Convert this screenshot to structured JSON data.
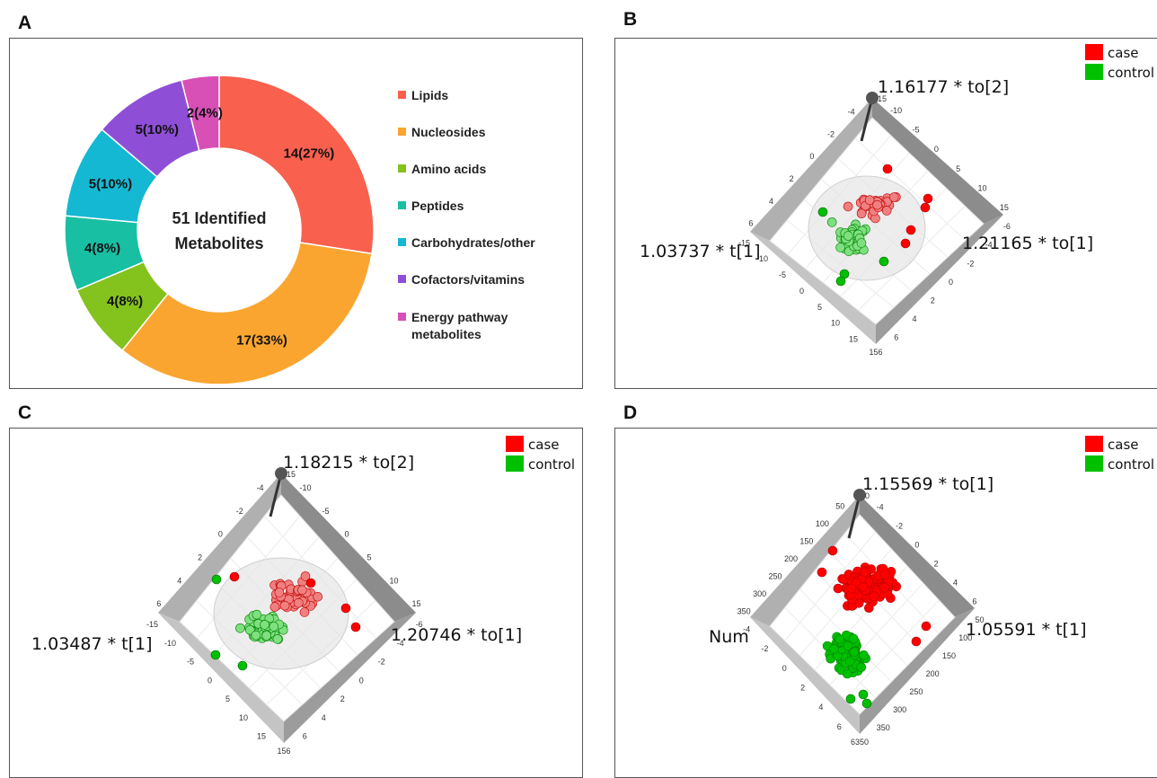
{
  "panels": {
    "a": {
      "letter": "A"
    },
    "b": {
      "letter": "B"
    },
    "c": {
      "letter": "C"
    },
    "d": {
      "letter": "D"
    }
  },
  "colors": {
    "case": "#ff0000",
    "control": "#00c000",
    "case_soft": "#f08080",
    "control_soft": "#7fe07f",
    "frame": "#9a9a9a"
  },
  "chart_data": [
    {
      "type": "pie",
      "panel": "A",
      "center_label": [
        "51 Identified",
        "Metabolites"
      ],
      "total": 51,
      "slices": [
        {
          "name": "Lipids",
          "value": 14,
          "label": "14(27%)",
          "color": "#f9604e"
        },
        {
          "name": "Nucleosides",
          "value": 17,
          "label": "17(33%)",
          "color": "#fba531"
        },
        {
          "name": "Amino acids",
          "value": 4,
          "label": "4(8%)",
          "color": "#84c21d"
        },
        {
          "name": "Peptides",
          "value": 4,
          "label": "4(8%)",
          "color": "#19bfa3"
        },
        {
          "name": "Carbohydrates/other",
          "value": 5,
          "label": "5(10%)",
          "color": "#15b8d2"
        },
        {
          "name": "Cofactors/vitamins",
          "value": 5,
          "label": "5(10%)",
          "color": "#8e4fd6"
        },
        {
          "name": "Energy pathway metabolites",
          "value": 2,
          "label": "2(4%)",
          "color": "#d84fb6"
        }
      ],
      "legend": [
        {
          "text": "Lipids",
          "color": "#f9604e"
        },
        {
          "text": "Nucleosides",
          "color": "#fba531"
        },
        {
          "text": "Amino acids",
          "color": "#84c21d"
        },
        {
          "text": "Peptides",
          "color": "#19bfa3"
        },
        {
          "text": "Carbohydrates/other",
          "color": "#15b8d2"
        },
        {
          "text": "Cofactors/vitamins",
          "color": "#8e4fd6"
        },
        {
          "text": "Energy pathway",
          "text2": "metabolites",
          "color": "#d84fb6"
        }
      ]
    },
    {
      "type": "scatter",
      "panel": "B",
      "legend": [
        "case",
        "control"
      ],
      "axis_top": "1.16177 * to[2]",
      "axis_left": "1.03737 * t[1]",
      "axis_right": "1.21165 * to[1]",
      "top_ticks": [
        "-4",
        "-2",
        "0",
        "2",
        "4",
        "6"
      ],
      "right_top_ticks": [
        "-10",
        "-5",
        "0",
        "5",
        "10",
        "15"
      ],
      "left_ticks": [
        "-15",
        "-10",
        "-5",
        "0",
        "5",
        "10",
        "15"
      ],
      "right_ticks": [
        "-6",
        "-4",
        "-2",
        "0",
        "2",
        "4",
        "6"
      ],
      "top_corner": "15",
      "bottom_corner": "156"
    },
    {
      "type": "scatter",
      "panel": "C",
      "legend": [
        "case",
        "control"
      ],
      "axis_top": "1.18215 * to[2]",
      "axis_left": "1.03487 * t[1]",
      "axis_right": "1.20746 * to[1]",
      "top_ticks": [
        "-4",
        "-2",
        "0",
        "2",
        "4",
        "6"
      ],
      "right_top_ticks": [
        "-10",
        "-5",
        "0",
        "5",
        "10",
        "15"
      ],
      "left_ticks": [
        "-15",
        "-10",
        "-5",
        "0",
        "5",
        "10",
        "15"
      ],
      "right_ticks": [
        "-6",
        "-4",
        "-2",
        "0",
        "2",
        "4",
        "6"
      ],
      "top_corner": "15",
      "bottom_corner": "156"
    },
    {
      "type": "scatter",
      "panel": "D",
      "legend": [
        "case",
        "control"
      ],
      "axis_top": "1.15569 * to[1]",
      "axis_left": "Num",
      "axis_right": "1.05591 * t[1]",
      "top_ticks": [
        "50",
        "100",
        "150",
        "200",
        "250",
        "300",
        "350"
      ],
      "right_top_ticks": [
        "-4",
        "-2",
        "0",
        "2",
        "4",
        "6"
      ],
      "left_ticks": [
        "-4",
        "-2",
        "0",
        "2",
        "4",
        "6"
      ],
      "right_ticks": [
        "50",
        "100",
        "150",
        "200",
        "250",
        "300",
        "350"
      ],
      "top_corner": "0",
      "bottom_corner": "6350"
    }
  ]
}
